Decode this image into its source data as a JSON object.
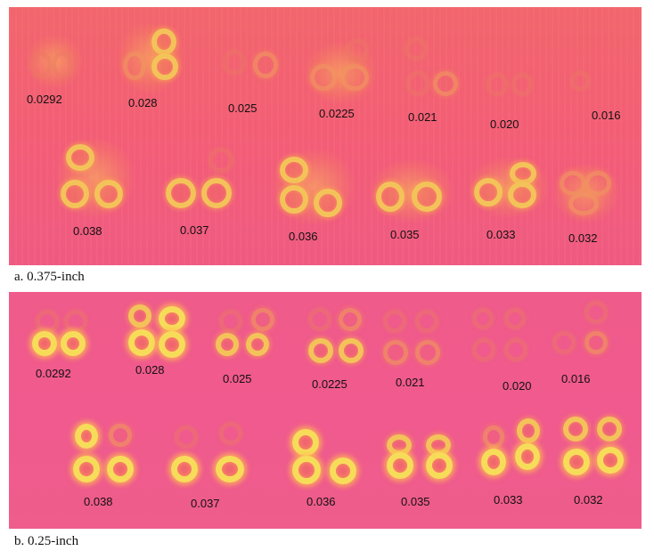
{
  "figure_panels": [
    {
      "id": "a",
      "caption": "a.  0.375-inch",
      "top_row_labels": [
        "0.0292",
        "0.028",
        "0.025",
        "0.0225",
        "0.021",
        "0.020",
        "0.016"
      ],
      "bottom_row_labels": [
        "0.038",
        "0.037",
        "0.036",
        "0.035",
        "0.033",
        "0.032"
      ]
    },
    {
      "id": "b",
      "caption": "b.  0.25-inch",
      "top_row_labels": [
        "0.0292",
        "0.028",
        "0.025",
        "0.0225",
        "0.021",
        "0.020",
        "0.016"
      ],
      "bottom_row_labels": [
        "0.038",
        "0.037",
        "0.036",
        "0.035",
        "0.033",
        "0.032"
      ]
    }
  ],
  "colors": {
    "panel_a_background": "#f2656d",
    "panel_b_background": "#ef5b8a",
    "ring_hot": "#f7dc5a",
    "ring_warm": "#f3c35a",
    "label_text": "#111111"
  }
}
